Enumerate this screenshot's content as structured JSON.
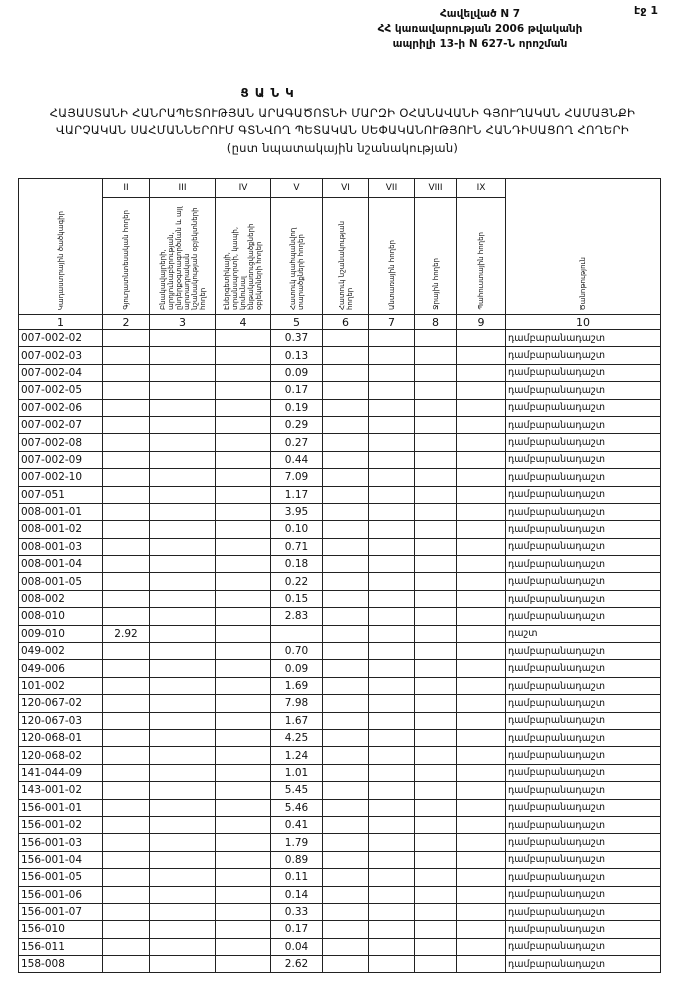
{
  "page_number": "էջ 1",
  "annex": {
    "line1": "Հավելված N 7",
    "line2": "ՀՀ կառավարության 2006 թվականի",
    "line3": "ապրիլի 13-ի N 627-Ն որոշման"
  },
  "title": "ՑԱՆԿ",
  "subtitle_line1": "ՀԱՅԱՍՏԱՆԻ ՀԱՆՐԱՊԵՏՈՒԹՅԱՆ ԱՐԱԳԱԾՈՏՆԻ ՄԱՐԶԻ ՕՀԱՆԱՎԱՆԻ ԳՅՈՒՂԱԿԱՆ ՀԱՄԱՅՆՔԻ",
  "subtitle_line2": "ՎԱՐՉԱԿԱՆ ՍԱՀՄԱՆՆԵՐՈՒՄ ԳՏՆՎՈՂ ՊԵՏԱԿԱՆ ՍԵՓԱԿԱՆՈՒԹՅՈՒՆ ՀԱՆԴԻՍԱՑՈՂ ՀՈՂԵՐԻ",
  "subtitle_line3": "(ըստ նպատակային նշանակության)",
  "table": {
    "roman": [
      "II",
      "III",
      "IV",
      "V",
      "VI",
      "VII",
      "VIII",
      "IX"
    ],
    "headers": [
      "Կադաստրային ծածկագիր",
      "Գյուղատնտեսական հողեր",
      "Բնակավայրերի, արդյունաբերության, ընդերքօգտագործման և այլ արտադրական նշանակության օբյեկտների հողեր",
      "Էներգետիկայի, տրանսպորտի, կապի, կոմունալ ենթակառուցվածքների օբյեկտների հողեր",
      "Հատուկ պահպանվող տարածքների հողեր",
      "Հատուկ նշանակության հողեր",
      "Անտառային հողեր",
      "Ջրային հողեր",
      "Պահուստային հողեր",
      "Ծանոթություն"
    ],
    "numbers": [
      "1",
      "2",
      "3",
      "4",
      "5",
      "6",
      "7",
      "8",
      "9",
      "10"
    ],
    "rows": [
      [
        "007-002-02",
        "",
        "0.37",
        "դամբարանադաշտ"
      ],
      [
        "007-002-03",
        "",
        "0.13",
        "դամբարանադաշտ"
      ],
      [
        "007-002-04",
        "",
        "0.09",
        "դամբարանադաշտ"
      ],
      [
        "007-002-05",
        "",
        "0.17",
        "դամբարանադաշտ"
      ],
      [
        "007-002-06",
        "",
        "0.19",
        "դամբարանադաշտ"
      ],
      [
        "007-002-07",
        "",
        "0.29",
        "դամբարանադաշտ"
      ],
      [
        "007-002-08",
        "",
        "0.27",
        "դամբարանադաշտ"
      ],
      [
        "007-002-09",
        "",
        "0.44",
        "դամբարանադաշտ"
      ],
      [
        "007-002-10",
        "",
        "7.09",
        "դամբարանադաշտ"
      ],
      [
        "007-051",
        "",
        "1.17",
        "դամբարանադաշտ"
      ],
      [
        "008-001-01",
        "",
        "3.95",
        "դամբարանադաշտ"
      ],
      [
        "008-001-02",
        "",
        "0.10",
        "դամբարանադաշտ"
      ],
      [
        "008-001-03",
        "",
        "0.71",
        "դամբարանադաշտ"
      ],
      [
        "008-001-04",
        "",
        "0.18",
        "դամբարանադաշտ"
      ],
      [
        "008-001-05",
        "",
        "0.22",
        "դամբարանադաշտ"
      ],
      [
        "008-002",
        "",
        "0.15",
        "դամբարանադաշտ"
      ],
      [
        "008-010",
        "",
        "2.83",
        "դամբարանադաշտ"
      ],
      [
        "009-010",
        "2.92",
        "",
        "դաշտ"
      ],
      [
        "049-002",
        "",
        "0.70",
        "դամբարանադաշտ"
      ],
      [
        "049-006",
        "",
        "0.09",
        "դամբարանադաշտ"
      ],
      [
        "101-002",
        "",
        "1.69",
        "դամբարանադաշտ"
      ],
      [
        "120-067-02",
        "",
        "7.98",
        "դամբարանադաշտ"
      ],
      [
        "120-067-03",
        "",
        "1.67",
        "դամբարանադաշտ"
      ],
      [
        "120-068-01",
        "",
        "4.25",
        "դամբարանադաշտ"
      ],
      [
        "120-068-02",
        "",
        "1.24",
        "դամբարանադաշտ"
      ],
      [
        "141-044-09",
        "",
        "1.01",
        "դամբարանադաշտ"
      ],
      [
        "143-001-02",
        "",
        "5.45",
        "դամբարանադաշտ"
      ],
      [
        "156-001-01",
        "",
        "5.46",
        "դամբարանադաշտ"
      ],
      [
        "156-001-02",
        "",
        "0.41",
        "դամբարանադաշտ"
      ],
      [
        "156-001-03",
        "",
        "1.79",
        "դամբարանադաշտ"
      ],
      [
        "156-001-04",
        "",
        "0.89",
        "դամբարանադաշտ"
      ],
      [
        "156-001-05",
        "",
        "0.11",
        "դամբարանադաշտ"
      ],
      [
        "156-001-06",
        "",
        "0.14",
        "դամբարանադաշտ"
      ],
      [
        "156-001-07",
        "",
        "0.33",
        "դամբարանադաշտ"
      ],
      [
        "156-010",
        "",
        "0.17",
        "դամբարանադաշտ"
      ],
      [
        "156-011",
        "",
        "0.04",
        "դամբարանադաշտ"
      ],
      [
        "158-008",
        "",
        "2.62",
        "դամբարանադաշտ"
      ]
    ]
  }
}
